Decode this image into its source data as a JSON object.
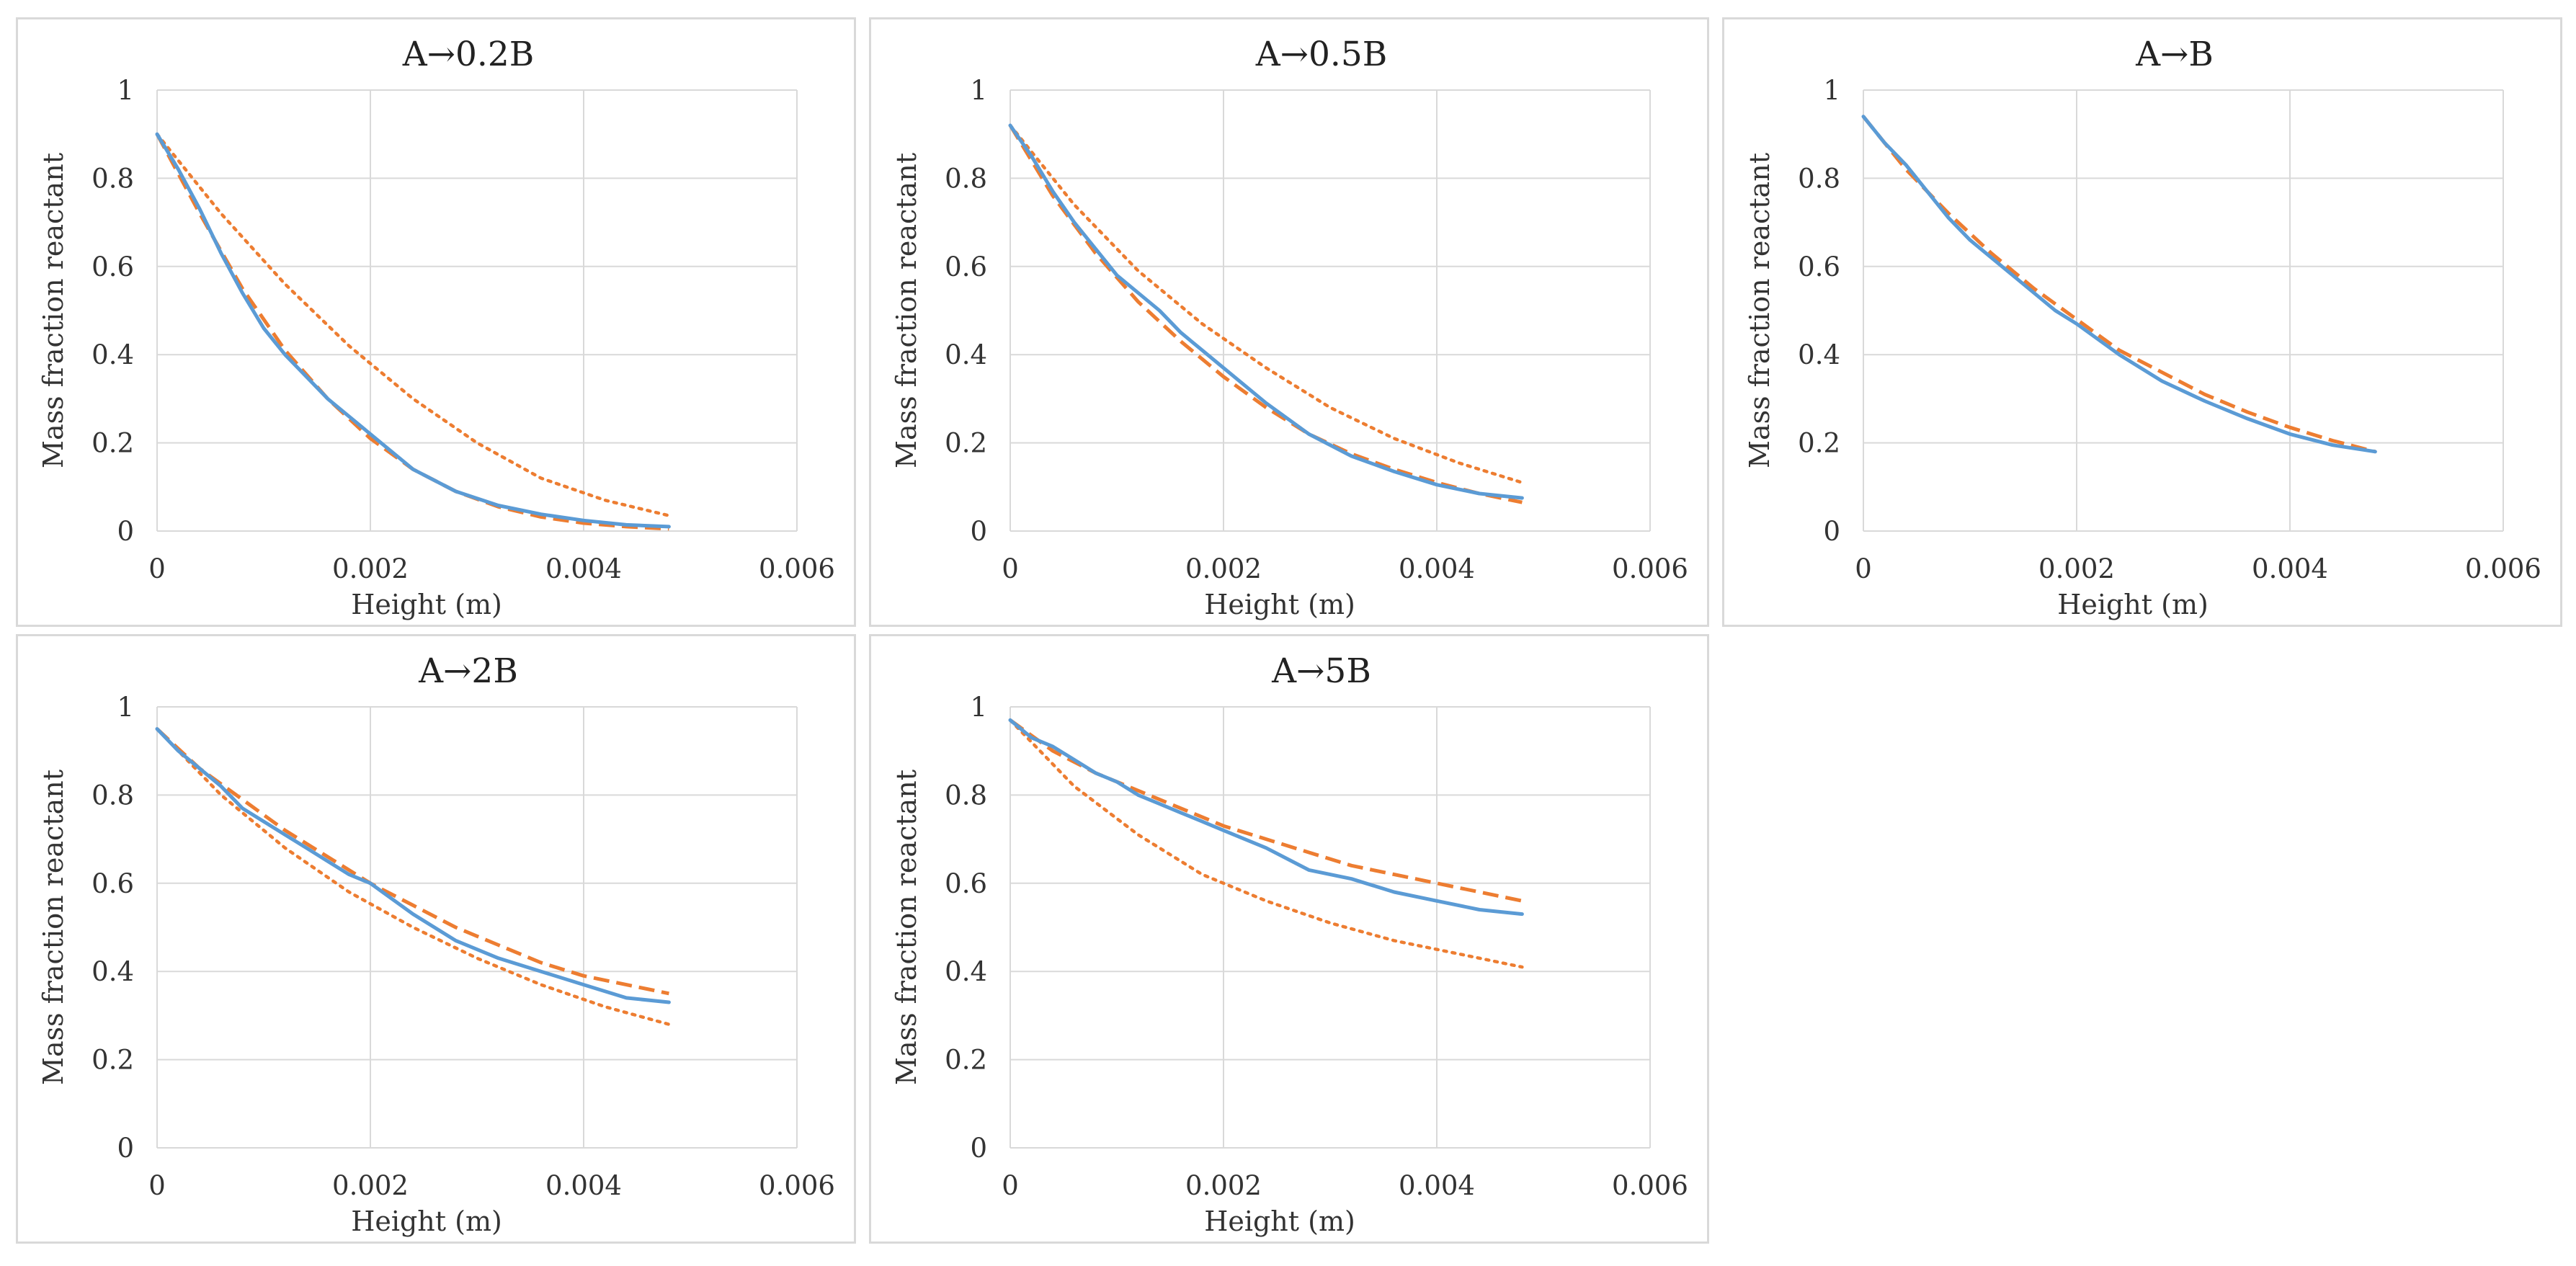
{
  "colors": {
    "sim": "#5b9bd5",
    "model": "#ed7d31"
  },
  "chart_data": [
    {
      "type": "line",
      "title": "A→0.2B",
      "xlabel": "Height (m)",
      "ylabel": "Mass fraction reactant",
      "xlim": [
        0,
        0.006
      ],
      "ylim": [
        0,
        1
      ],
      "xticks": [
        "0",
        "0.002",
        "0.004",
        "0.006"
      ],
      "yticks": [
        "0",
        "0.2",
        "0.4",
        "0.6",
        "0.8",
        "1"
      ],
      "series": [
        {
          "name": "solid",
          "style": "solid",
          "x": [
            0,
            0.0002,
            0.0004,
            0.0006,
            0.0008,
            0.001,
            0.0012,
            0.0014,
            0.0016,
            0.0018,
            0.002,
            0.0024,
            0.0028,
            0.0032,
            0.0036,
            0.004,
            0.0044,
            0.0048
          ],
          "y": [
            0.9,
            0.82,
            0.73,
            0.63,
            0.54,
            0.46,
            0.4,
            0.35,
            0.3,
            0.26,
            0.22,
            0.14,
            0.09,
            0.058,
            0.038,
            0.024,
            0.014,
            0.01
          ]
        },
        {
          "name": "dashed",
          "style": "dashed",
          "x": [
            0,
            0.0004,
            0.0008,
            0.0012,
            0.0016,
            0.002,
            0.0024,
            0.0028,
            0.0032,
            0.0036,
            0.004,
            0.0044,
            0.0048
          ],
          "y": [
            0.9,
            0.72,
            0.55,
            0.41,
            0.3,
            0.21,
            0.14,
            0.09,
            0.055,
            0.032,
            0.018,
            0.01,
            0.005
          ]
        },
        {
          "name": "dotted",
          "style": "dotted",
          "x": [
            0,
            0.0006,
            0.0012,
            0.0018,
            0.0024,
            0.003,
            0.0036,
            0.0042,
            0.0048
          ],
          "y": [
            0.9,
            0.72,
            0.56,
            0.42,
            0.3,
            0.2,
            0.12,
            0.07,
            0.035
          ]
        }
      ]
    },
    {
      "type": "line",
      "title": "A→0.5B",
      "xlabel": "Height (m)",
      "ylabel": "Mass fraction reactant",
      "xlim": [
        0,
        0.006
      ],
      "ylim": [
        0,
        1
      ],
      "xticks": [
        "0",
        "0.002",
        "0.004",
        "0.006"
      ],
      "yticks": [
        "0",
        "0.2",
        "0.4",
        "0.6",
        "0.8",
        "1"
      ],
      "series": [
        {
          "name": "solid",
          "style": "solid",
          "x": [
            0,
            0.0002,
            0.0004,
            0.0006,
            0.0008,
            0.001,
            0.0012,
            0.0014,
            0.0016,
            0.0018,
            0.002,
            0.0024,
            0.0028,
            0.0032,
            0.0036,
            0.004,
            0.0044,
            0.0048
          ],
          "y": [
            0.92,
            0.85,
            0.77,
            0.7,
            0.64,
            0.58,
            0.54,
            0.5,
            0.45,
            0.41,
            0.37,
            0.29,
            0.22,
            0.17,
            0.135,
            0.105,
            0.085,
            0.075
          ]
        },
        {
          "name": "dashed",
          "style": "dashed",
          "x": [
            0,
            0.0004,
            0.0008,
            0.0012,
            0.0016,
            0.002,
            0.0024,
            0.0028,
            0.0032,
            0.0036,
            0.004,
            0.0044,
            0.0048
          ],
          "y": [
            0.92,
            0.76,
            0.63,
            0.52,
            0.43,
            0.35,
            0.28,
            0.22,
            0.175,
            0.14,
            0.11,
            0.085,
            0.065
          ]
        },
        {
          "name": "dotted",
          "style": "dotted",
          "x": [
            0,
            0.0006,
            0.0012,
            0.0018,
            0.0024,
            0.003,
            0.0036,
            0.0042,
            0.0048
          ],
          "y": [
            0.92,
            0.74,
            0.59,
            0.47,
            0.37,
            0.28,
            0.21,
            0.155,
            0.11
          ]
        }
      ]
    },
    {
      "type": "line",
      "title": "A→B",
      "xlabel": "Height (m)",
      "ylabel": "Mass fraction reactant",
      "xlim": [
        0,
        0.006
      ],
      "ylim": [
        0,
        1
      ],
      "xticks": [
        "0",
        "0.002",
        "0.004",
        "0.006"
      ],
      "yticks": [
        "0",
        "0.2",
        "0.4",
        "0.6",
        "0.8",
        "1"
      ],
      "series": [
        {
          "name": "solid",
          "style": "solid",
          "x": [
            0,
            0.0002,
            0.0004,
            0.0006,
            0.0008,
            0.001,
            0.0012,
            0.0014,
            0.0016,
            0.0018,
            0.002,
            0.0024,
            0.0028,
            0.0032,
            0.0036,
            0.004,
            0.0044,
            0.0048
          ],
          "y": [
            0.94,
            0.88,
            0.83,
            0.77,
            0.71,
            0.66,
            0.62,
            0.58,
            0.54,
            0.5,
            0.47,
            0.4,
            0.34,
            0.295,
            0.255,
            0.22,
            0.195,
            0.18
          ]
        },
        {
          "name": "dashed",
          "style": "dashed",
          "x": [
            0,
            0.0004,
            0.0008,
            0.0012,
            0.0016,
            0.002,
            0.0024,
            0.0028,
            0.0032,
            0.0036,
            0.004,
            0.0044,
            0.0048
          ],
          "y": [
            0.94,
            0.82,
            0.72,
            0.63,
            0.55,
            0.48,
            0.41,
            0.36,
            0.31,
            0.27,
            0.235,
            0.205,
            0.18
          ]
        }
      ]
    },
    {
      "type": "line",
      "title": "A→2B",
      "xlabel": "Height (m)",
      "ylabel": "Mass fraction reactant",
      "xlim": [
        0,
        0.006
      ],
      "ylim": [
        0,
        1
      ],
      "xticks": [
        "0",
        "0.002",
        "0.004",
        "0.006"
      ],
      "yticks": [
        "0",
        "0.2",
        "0.4",
        "0.6",
        "0.8",
        "1"
      ],
      "series": [
        {
          "name": "solid",
          "style": "solid",
          "x": [
            0,
            0.0002,
            0.0004,
            0.0006,
            0.0008,
            0.001,
            0.0012,
            0.0014,
            0.0016,
            0.0018,
            0.002,
            0.0024,
            0.0028,
            0.0032,
            0.0036,
            0.004,
            0.0044,
            0.0048
          ],
          "y": [
            0.95,
            0.9,
            0.86,
            0.82,
            0.77,
            0.74,
            0.71,
            0.68,
            0.65,
            0.62,
            0.6,
            0.53,
            0.47,
            0.43,
            0.4,
            0.37,
            0.34,
            0.33
          ]
        },
        {
          "name": "dashed",
          "style": "dashed",
          "x": [
            0,
            0.0004,
            0.0008,
            0.0012,
            0.0016,
            0.002,
            0.0024,
            0.0028,
            0.0032,
            0.0036,
            0.004,
            0.0044,
            0.0048
          ],
          "y": [
            0.95,
            0.86,
            0.79,
            0.72,
            0.66,
            0.6,
            0.55,
            0.5,
            0.46,
            0.42,
            0.39,
            0.37,
            0.35
          ]
        },
        {
          "name": "dotted",
          "style": "dotted",
          "x": [
            0,
            0.0006,
            0.0012,
            0.0018,
            0.0024,
            0.003,
            0.0036,
            0.0042,
            0.0048
          ],
          "y": [
            0.95,
            0.8,
            0.68,
            0.58,
            0.5,
            0.43,
            0.37,
            0.32,
            0.28
          ]
        }
      ]
    },
    {
      "type": "line",
      "title": "A→5B",
      "xlabel": "Height (m)",
      "ylabel": "Mass fraction reactant",
      "xlim": [
        0,
        0.006
      ],
      "ylim": [
        0,
        1
      ],
      "xticks": [
        "0",
        "0.002",
        "0.004",
        "0.006"
      ],
      "yticks": [
        "0",
        "0.2",
        "0.4",
        "0.6",
        "0.8",
        "1"
      ],
      "series": [
        {
          "name": "solid",
          "style": "solid",
          "x": [
            0,
            0.0002,
            0.0004,
            0.0006,
            0.0008,
            0.001,
            0.0012,
            0.0014,
            0.0016,
            0.0018,
            0.002,
            0.0024,
            0.0028,
            0.0032,
            0.0036,
            0.004,
            0.0044,
            0.0048
          ],
          "y": [
            0.97,
            0.93,
            0.91,
            0.88,
            0.85,
            0.83,
            0.8,
            0.78,
            0.76,
            0.74,
            0.72,
            0.68,
            0.63,
            0.61,
            0.58,
            0.56,
            0.54,
            0.53
          ]
        },
        {
          "name": "dashed",
          "style": "dashed",
          "x": [
            0,
            0.0004,
            0.0008,
            0.0012,
            0.0016,
            0.002,
            0.0024,
            0.0028,
            0.0032,
            0.0036,
            0.004,
            0.0044,
            0.0048
          ],
          "y": [
            0.97,
            0.9,
            0.85,
            0.81,
            0.77,
            0.73,
            0.7,
            0.67,
            0.64,
            0.62,
            0.6,
            0.58,
            0.56
          ]
        },
        {
          "name": "dotted",
          "style": "dotted",
          "x": [
            0,
            0.0006,
            0.0012,
            0.0018,
            0.0024,
            0.003,
            0.0036,
            0.0042,
            0.0048
          ],
          "y": [
            0.97,
            0.82,
            0.71,
            0.62,
            0.56,
            0.51,
            0.47,
            0.44,
            0.41
          ]
        }
      ]
    }
  ]
}
